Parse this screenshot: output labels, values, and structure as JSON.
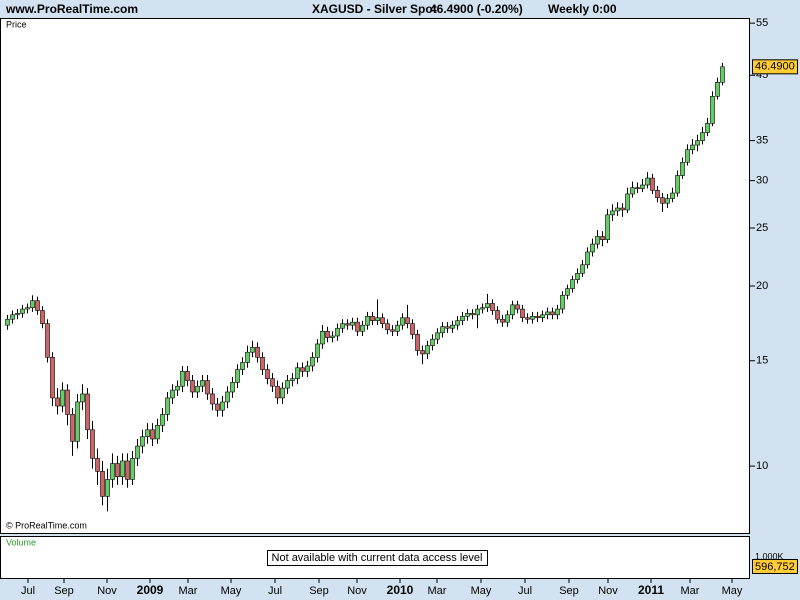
{
  "header": {
    "site": "www.ProRealTime.com",
    "instrument": "XAGUSD - Silver Spot",
    "quote": "46.4900 (-0.20%)",
    "period": "Weekly  0:00"
  },
  "chart_data": {
    "type": "candlestick",
    "panel_label": "Price",
    "copyright": "© ProRealTime.com",
    "ohlc": [
      [
        17.2,
        17.9,
        16.9,
        17.6
      ],
      [
        17.6,
        18.2,
        17.3,
        17.9
      ],
      [
        17.9,
        18.3,
        17.6,
        18.0
      ],
      [
        18.0,
        18.6,
        17.7,
        18.3
      ],
      [
        18.3,
        18.7,
        18.0,
        18.4
      ],
      [
        18.4,
        19.3,
        18.1,
        18.9
      ],
      [
        18.9,
        19.2,
        17.9,
        18.2
      ],
      [
        18.2,
        18.5,
        17.0,
        17.3
      ],
      [
        17.3,
        17.6,
        14.9,
        15.2
      ],
      [
        15.2,
        15.5,
        12.6,
        13.0
      ],
      [
        13.0,
        13.5,
        12.2,
        12.6
      ],
      [
        12.6,
        13.8,
        12.3,
        13.4
      ],
      [
        13.4,
        13.7,
        11.7,
        12.2
      ],
      [
        12.2,
        12.5,
        10.4,
        11.0
      ],
      [
        11.0,
        13.2,
        10.7,
        12.8
      ],
      [
        12.8,
        13.7,
        12.4,
        13.2
      ],
      [
        13.2,
        13.5,
        11.1,
        11.5
      ],
      [
        11.5,
        11.9,
        9.9,
        10.3
      ],
      [
        10.3,
        10.7,
        9.3,
        9.8
      ],
      [
        9.8,
        10.2,
        8.6,
        8.9
      ],
      [
        8.9,
        9.9,
        8.4,
        9.5
      ],
      [
        9.5,
        10.5,
        9.2,
        10.1
      ],
      [
        10.1,
        10.4,
        9.3,
        9.6
      ],
      [
        9.6,
        10.5,
        9.3,
        10.2
      ],
      [
        10.2,
        10.5,
        9.2,
        9.5
      ],
      [
        9.5,
        10.6,
        9.3,
        10.3
      ],
      [
        10.3,
        11.1,
        10.0,
        10.8
      ],
      [
        10.8,
        11.5,
        10.5,
        11.2
      ],
      [
        11.2,
        11.8,
        10.9,
        11.5
      ],
      [
        11.5,
        11.8,
        10.8,
        11.1
      ],
      [
        11.1,
        12.0,
        10.9,
        11.7
      ],
      [
        11.7,
        12.5,
        11.4,
        12.2
      ],
      [
        12.2,
        13.3,
        11.9,
        13.0
      ],
      [
        13.0,
        13.7,
        12.7,
        13.4
      ],
      [
        13.4,
        13.9,
        13.1,
        13.6
      ],
      [
        13.6,
        14.7,
        13.3,
        14.4
      ],
      [
        14.4,
        14.7,
        13.6,
        13.9
      ],
      [
        13.9,
        14.2,
        13.0,
        13.3
      ],
      [
        13.3,
        13.9,
        13.0,
        13.6
      ],
      [
        13.6,
        14.2,
        13.3,
        13.9
      ],
      [
        13.9,
        14.2,
        12.9,
        13.2
      ],
      [
        13.2,
        13.5,
        12.4,
        12.7
      ],
      [
        12.7,
        13.0,
        12.1,
        12.4
      ],
      [
        12.4,
        13.1,
        12.1,
        12.8
      ],
      [
        12.8,
        13.6,
        12.5,
        13.3
      ],
      [
        13.3,
        14.1,
        13.0,
        13.8
      ],
      [
        13.8,
        14.8,
        13.5,
        14.5
      ],
      [
        14.5,
        15.2,
        14.2,
        14.9
      ],
      [
        14.9,
        15.9,
        14.6,
        15.5
      ],
      [
        15.5,
        16.2,
        15.2,
        15.8
      ],
      [
        15.8,
        16.1,
        14.9,
        15.2
      ],
      [
        15.2,
        15.5,
        14.2,
        14.5
      ],
      [
        14.5,
        14.8,
        13.7,
        14.0
      ],
      [
        14.0,
        14.3,
        13.3,
        13.6
      ],
      [
        13.6,
        13.9,
        12.7,
        13.0
      ],
      [
        13.0,
        13.8,
        12.7,
        13.5
      ],
      [
        13.5,
        14.2,
        13.2,
        13.9
      ],
      [
        13.9,
        14.3,
        13.6,
        14.0
      ],
      [
        14.0,
        14.9,
        13.7,
        14.6
      ],
      [
        14.6,
        14.9,
        14.1,
        14.4
      ],
      [
        14.4,
        15.0,
        14.1,
        14.7
      ],
      [
        14.7,
        15.5,
        14.4,
        15.2
      ],
      [
        15.2,
        16.3,
        14.9,
        16.0
      ],
      [
        16.0,
        17.2,
        15.7,
        16.8
      ],
      [
        16.8,
        17.1,
        16.1,
        16.4
      ],
      [
        16.4,
        16.8,
        16.1,
        16.5
      ],
      [
        16.5,
        17.3,
        16.2,
        17.0
      ],
      [
        17.0,
        17.6,
        16.7,
        17.3
      ],
      [
        17.3,
        17.6,
        16.9,
        17.2
      ],
      [
        17.2,
        17.7,
        16.9,
        17.4
      ],
      [
        17.4,
        17.7,
        16.5,
        16.8
      ],
      [
        16.8,
        17.5,
        16.5,
        17.2
      ],
      [
        17.2,
        18.1,
        16.9,
        17.8
      ],
      [
        17.8,
        18.1,
        17.2,
        17.5
      ],
      [
        17.5,
        19.0,
        17.2,
        17.7
      ],
      [
        17.7,
        18.0,
        17.0,
        17.3
      ],
      [
        17.3,
        17.6,
        16.6,
        16.9
      ],
      [
        16.9,
        17.2,
        16.5,
        16.8
      ],
      [
        16.8,
        17.5,
        16.5,
        17.2
      ],
      [
        17.2,
        18.0,
        16.9,
        17.7
      ],
      [
        17.7,
        18.6,
        17.0,
        17.3
      ],
      [
        17.3,
        17.6,
        16.3,
        16.6
      ],
      [
        16.6,
        16.9,
        15.3,
        15.6
      ],
      [
        15.6,
        15.9,
        14.8,
        15.4
      ],
      [
        15.4,
        16.2,
        15.1,
        15.9
      ],
      [
        15.9,
        16.6,
        15.6,
        16.3
      ],
      [
        16.3,
        17.0,
        16.0,
        16.7
      ],
      [
        16.7,
        17.4,
        16.4,
        17.1
      ],
      [
        17.1,
        17.4,
        16.7,
        17.0
      ],
      [
        17.0,
        17.5,
        16.7,
        17.2
      ],
      [
        17.2,
        17.8,
        16.9,
        17.5
      ],
      [
        17.5,
        18.1,
        17.2,
        17.8
      ],
      [
        17.8,
        18.3,
        17.5,
        18.0
      ],
      [
        18.0,
        18.3,
        17.6,
        17.9
      ],
      [
        17.9,
        18.6,
        17.0,
        18.3
      ],
      [
        18.3,
        18.7,
        18.0,
        18.4
      ],
      [
        18.4,
        19.4,
        18.1,
        18.7
      ],
      [
        18.7,
        19.0,
        17.9,
        18.2
      ],
      [
        18.2,
        18.5,
        17.3,
        17.6
      ],
      [
        17.6,
        17.9,
        17.1,
        17.4
      ],
      [
        17.4,
        18.2,
        17.1,
        17.9
      ],
      [
        17.9,
        18.9,
        17.6,
        18.6
      ],
      [
        18.6,
        18.9,
        18.0,
        18.3
      ],
      [
        18.3,
        18.6,
        17.4,
        17.7
      ],
      [
        17.7,
        18.0,
        17.3,
        17.6
      ],
      [
        17.6,
        18.1,
        17.3,
        17.8
      ],
      [
        17.8,
        18.1,
        17.4,
        17.7
      ],
      [
        17.7,
        18.2,
        17.4,
        17.9
      ],
      [
        17.9,
        18.4,
        17.6,
        18.1
      ],
      [
        18.1,
        18.4,
        17.6,
        17.9
      ],
      [
        17.9,
        18.6,
        17.6,
        18.3
      ],
      [
        18.3,
        19.6,
        18.0,
        19.3
      ],
      [
        19.3,
        20.1,
        19.0,
        19.8
      ],
      [
        19.8,
        20.8,
        19.5,
        20.5
      ],
      [
        20.5,
        21.4,
        20.2,
        21.0
      ],
      [
        21.0,
        22.1,
        20.7,
        21.7
      ],
      [
        21.7,
        23.2,
        21.4,
        22.8
      ],
      [
        22.8,
        24.0,
        22.4,
        23.5
      ],
      [
        23.5,
        24.8,
        23.1,
        24.2
      ],
      [
        24.2,
        24.7,
        23.3,
        23.9
      ],
      [
        23.9,
        26.9,
        23.6,
        26.3
      ],
      [
        26.3,
        27.4,
        25.7,
        26.7
      ],
      [
        26.7,
        27.6,
        26.2,
        27.0
      ],
      [
        27.0,
        27.5,
        26.1,
        26.8
      ],
      [
        26.8,
        29.2,
        26.5,
        28.5
      ],
      [
        28.5,
        29.9,
        28.1,
        29.2
      ],
      [
        29.2,
        29.8,
        28.6,
        29.1
      ],
      [
        29.1,
        30.2,
        28.7,
        29.5
      ],
      [
        29.5,
        31.0,
        29.1,
        30.3
      ],
      [
        30.3,
        30.8,
        28.5,
        28.9
      ],
      [
        28.9,
        29.4,
        27.6,
        28.1
      ],
      [
        28.1,
        28.6,
        26.6,
        27.5
      ],
      [
        27.5,
        28.5,
        27.0,
        28.0
      ],
      [
        28.0,
        29.2,
        27.6,
        28.6
      ],
      [
        28.6,
        31.2,
        28.2,
        30.6
      ],
      [
        30.6,
        32.8,
        30.2,
        32.2
      ],
      [
        32.2,
        34.5,
        31.8,
        33.8
      ],
      [
        33.8,
        35.2,
        33.2,
        34.4
      ],
      [
        34.4,
        35.8,
        33.6,
        35.0
      ],
      [
        35.0,
        36.9,
        34.5,
        36.1
      ],
      [
        36.1,
        38.2,
        35.6,
        37.4
      ],
      [
        37.4,
        42.3,
        37.0,
        41.5
      ],
      [
        41.5,
        44.6,
        41.0,
        43.8
      ],
      [
        43.8,
        47.2,
        43.3,
        46.49
      ]
    ],
    "last_price_label": "46.4900",
    "up_color": "#66cc66",
    "down_color": "#cc6666",
    "log_scale": true,
    "ylim": [
      7.73,
      56.1
    ],
    "yticks": [
      10,
      15,
      20,
      25,
      30,
      35,
      45,
      55
    ],
    "xlim": [
      -1.4,
      148.6
    ],
    "xticks": [
      {
        "value": 4.2,
        "label": "Jul"
      },
      {
        "value": 11.4,
        "label": "Sep"
      },
      {
        "value": 20,
        "label": "Nov"
      },
      {
        "value": 28.6,
        "label": "2009"
      },
      {
        "value": 36.2,
        "label": "Mar"
      },
      {
        "value": 44.8,
        "label": "May"
      },
      {
        "value": 53.6,
        "label": "Jul"
      },
      {
        "value": 62.4,
        "label": "Sep"
      },
      {
        "value": 70,
        "label": "Nov"
      },
      {
        "value": 78.6,
        "label": "2010"
      },
      {
        "value": 86,
        "label": "Mar"
      },
      {
        "value": 94.8,
        "label": "May"
      },
      {
        "value": 103.6,
        "label": "Jul"
      },
      {
        "value": 112.4,
        "label": "Sep"
      },
      {
        "value": 120.2,
        "label": "Nov"
      },
      {
        "value": 128.8,
        "label": "2011"
      },
      {
        "value": 136.6,
        "label": "Mar"
      },
      {
        "value": 145,
        "label": "May"
      }
    ]
  },
  "volume_panel": {
    "label": "Volume",
    "message": "Not available with current data access level",
    "axis_label": "1,000K",
    "last_label": "596,752"
  }
}
